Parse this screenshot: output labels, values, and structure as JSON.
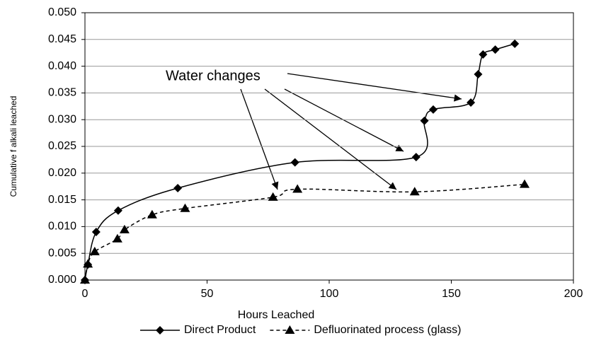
{
  "chart_data": {
    "type": "line",
    "x_label": "Hours Leached",
    "y_label": "Cumulative f alkali leached",
    "annotation": "Water changes",
    "xlim": [
      0,
      200
    ],
    "xticks": [
      0,
      50,
      100,
      150,
      200
    ],
    "ylim": [
      0,
      0.05
    ],
    "yticks": [
      {
        "value": 0,
        "label": "0.000"
      },
      {
        "value": 0.005,
        "label": "0.005"
      },
      {
        "value": 0.01,
        "label": "0.010"
      },
      {
        "value": 0.015,
        "label": "0.015"
      },
      {
        "value": 0.02,
        "label": "0.020"
      },
      {
        "value": 0.025,
        "label": "0.025"
      },
      {
        "value": 0.03,
        "label": "0.030"
      },
      {
        "value": 0.035,
        "label": "0.035"
      },
      {
        "value": 0.04,
        "label": "0.040"
      },
      {
        "value": 0.045,
        "label": "0.045"
      },
      {
        "value": 0.05,
        "label": "0.050"
      }
    ],
    "grid": true,
    "series": [
      {
        "name": "Direct Product",
        "color": "#000000",
        "dash": false,
        "marker": "diamond",
        "x": [
          0,
          1.2,
          4.6,
          13.6,
          38,
          86,
          135.6,
          139,
          142.6,
          158,
          161,
          163,
          168,
          176
        ],
        "values": [
          0,
          0.0029,
          0.009,
          0.013,
          0.0172,
          0.022,
          0.023,
          0.0298,
          0.0319,
          0.0332,
          0.0385,
          0.0422,
          0.0431,
          0.0442
        ]
      },
      {
        "name": "Defluorinated process (glass)",
        "color": "#000000",
        "dash": true,
        "marker": "triangle",
        "x": [
          0,
          1.2,
          4,
          13.3,
          16.2,
          27.5,
          41,
          77,
          87,
          135,
          180
        ],
        "values": [
          0,
          0.003,
          0.0053,
          0.0077,
          0.0094,
          0.0122,
          0.0134,
          0.0155,
          0.017,
          0.0165,
          0.0179
        ]
      }
    ]
  }
}
